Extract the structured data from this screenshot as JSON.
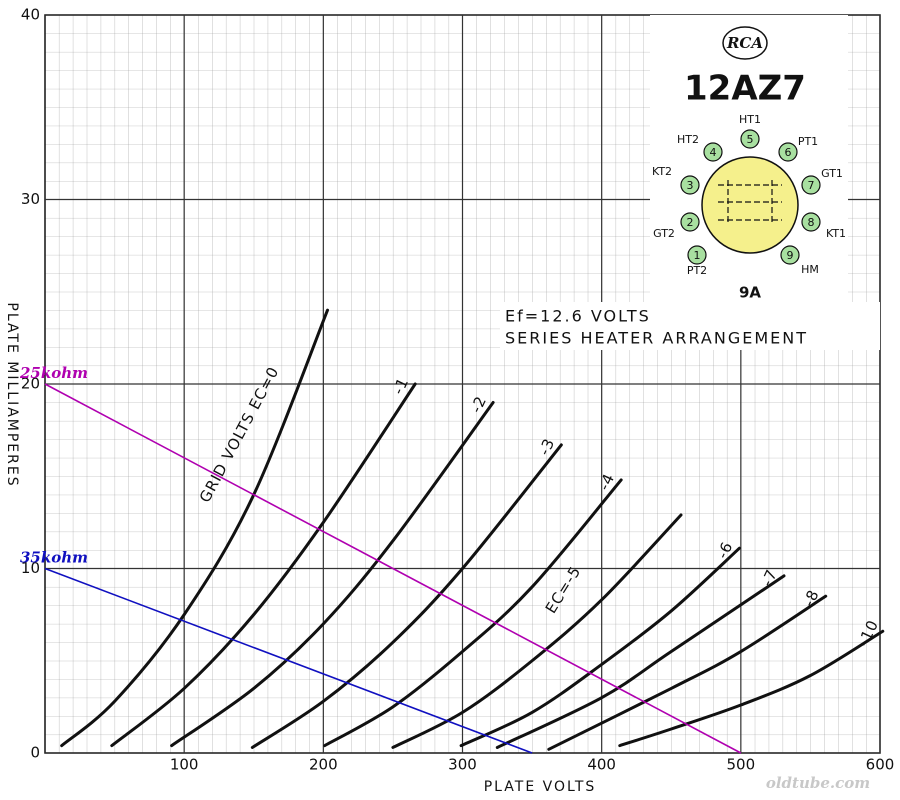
{
  "chart_data": {
    "type": "line",
    "x_label": "PLATE VOLTS",
    "y_label": "PLATE MILLIAMPERES",
    "xlim": [
      0,
      600
    ],
    "ylim": [
      0,
      40
    ],
    "xticks": [
      100,
      200,
      300,
      400,
      500,
      600
    ],
    "yticks": [
      0,
      10,
      20,
      30,
      40
    ],
    "grid": true,
    "series": [
      {
        "name": "GRID VOLTS EC=0",
        "color": "#111111",
        "x": [
          12,
          50,
          100,
          150,
          203
        ],
        "values": [
          0.4,
          2.8,
          7.5,
          14,
          24
        ]
      },
      {
        "name": "-1",
        "color": "#111111",
        "x": [
          48,
          100,
          150,
          200,
          266
        ],
        "values": [
          0.4,
          3.5,
          7.5,
          12.5,
          20
        ]
      },
      {
        "name": "-2",
        "color": "#111111",
        "x": [
          91,
          150,
          200,
          250,
          322
        ],
        "values": [
          0.4,
          3.5,
          7,
          11.5,
          19
        ]
      },
      {
        "name": "-3",
        "color": "#111111",
        "x": [
          149,
          200,
          250,
          300,
          371
        ],
        "values": [
          0.3,
          2.8,
          6,
          10,
          16.7
        ]
      },
      {
        "name": "-4",
        "color": "#111111",
        "x": [
          201,
          250,
          300,
          350,
          414
        ],
        "values": [
          0.4,
          2.5,
          5.5,
          9,
          14.8
        ]
      },
      {
        "name": "EC=-5",
        "color": "#111111",
        "x": [
          250,
          300,
          350,
          400,
          457
        ],
        "values": [
          0.3,
          2.2,
          5,
          8.3,
          12.9
        ]
      },
      {
        "name": "-6",
        "color": "#111111",
        "x": [
          299,
          350,
          400,
          450,
          499
        ],
        "values": [
          0.4,
          2.2,
          4.8,
          7.7,
          11.1
        ]
      },
      {
        "name": "-7",
        "color": "#111111",
        "x": [
          325,
          400,
          450,
          531
        ],
        "values": [
          0.3,
          3,
          5.5,
          9.6
        ]
      },
      {
        "name": "-8",
        "color": "#111111",
        "x": [
          362,
          450,
          500,
          561
        ],
        "values": [
          0.2,
          3.5,
          5.5,
          8.5
        ]
      },
      {
        "name": "-10",
        "color": "#111111",
        "x": [
          413,
          450,
          500,
          550,
          602
        ],
        "values": [
          0.4,
          1.3,
          2.6,
          4.2,
          6.6
        ]
      }
    ],
    "load_lines": [
      {
        "name": "25kohm",
        "color": "#b000b0",
        "x": [
          0,
          500
        ],
        "values": [
          20,
          0
        ]
      },
      {
        "name": "35kohm",
        "color": "#1010c0",
        "x": [
          0,
          350
        ],
        "values": [
          10,
          0
        ]
      }
    ],
    "annotations": [
      "Ef=12.6 VOLTS",
      "SERIES HEATER ARRANGEMENT"
    ],
    "tube": {
      "brand": "RCA",
      "model": "12AZ7",
      "basing": "9A",
      "pins": [
        {
          "number": "1",
          "label": "PT2"
        },
        {
          "number": "2",
          "label": "GT2"
        },
        {
          "number": "3",
          "label": "KT2"
        },
        {
          "number": "4",
          "label": "HT2"
        },
        {
          "number": "5",
          "label": "HT1"
        },
        {
          "number": "6",
          "label": "PT1"
        },
        {
          "number": "7",
          "label": "GT1"
        },
        {
          "number": "8",
          "label": "KT1"
        },
        {
          "number": "9",
          "label": "HM"
        }
      ]
    },
    "watermark": "oldtube.com"
  }
}
